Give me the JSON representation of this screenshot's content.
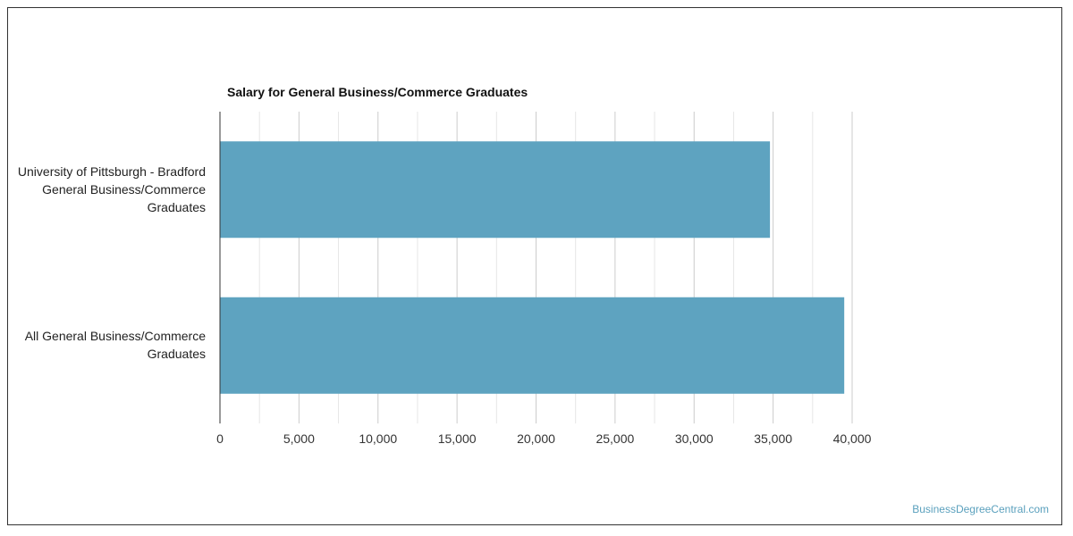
{
  "chart_data": {
    "type": "bar",
    "orientation": "horizontal",
    "title": "Salary for General Business/Commerce Graduates",
    "categories": [
      [
        "University of Pittsburgh - Bradford",
        "General Business/Commerce",
        "Graduates"
      ],
      [
        "All General Business/Commerce",
        "Graduates"
      ]
    ],
    "values": [
      34800,
      39500
    ],
    "xlim": [
      0,
      40000
    ],
    "x_ticks": [
      "0",
      "5,000",
      "10,000",
      "15,000",
      "20,000",
      "25,000",
      "30,000",
      "35,000",
      "40,000"
    ],
    "xlabel": "",
    "ylabel": "",
    "grid": true,
    "bar_color": "#5ea3c0"
  },
  "watermark": "BusinessDegreeCentral.com"
}
